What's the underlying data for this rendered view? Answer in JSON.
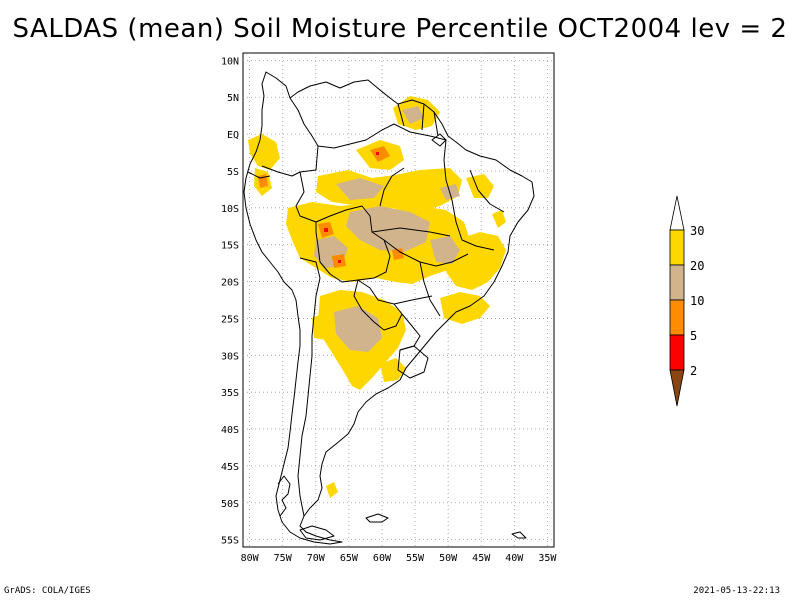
{
  "title": "SALDAS (mean) Soil Moisture Percentile OCT2004 lev = 2",
  "map": {
    "lat_ticks": [
      "10N",
      "5N",
      "EQ",
      "5S",
      "10S",
      "15S",
      "20S",
      "25S",
      "30S",
      "35S",
      "40S",
      "45S",
      "50S",
      "55S"
    ],
    "lon_ticks": [
      "80W",
      "75W",
      "70W",
      "65W",
      "60W",
      "55W",
      "50W",
      "45W",
      "40W",
      "35W"
    ],
    "lat_range": [
      -56,
      11
    ],
    "lon_range": [
      -81,
      -34
    ]
  },
  "legend": {
    "labels": [
      "2",
      "5",
      "10",
      "20",
      "30"
    ],
    "colors": {
      "below_2": "#8b4513",
      "2_5": "#ff0000",
      "5_10": "#ff8c00",
      "10_20": "#d2b48c",
      "20_30": "#ffd700",
      "above_30": "#ffffff"
    }
  },
  "footer": {
    "left": "GrADS: COLA/IGES",
    "right": "2021-05-13-22:13"
  }
}
